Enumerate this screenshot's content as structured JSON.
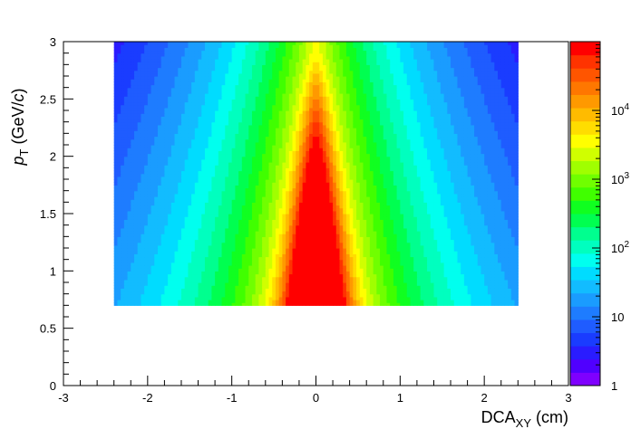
{
  "chart_data": {
    "type": "heatmap",
    "title": "",
    "xlabel": {
      "main": "DCA",
      "sub": "XY",
      "unit": " (cm)"
    },
    "ylabel": {
      "main": "p",
      "sub": "T",
      "unit_prefix": " (GeV/",
      "unit_var": "c",
      "unit_suffix": ")"
    },
    "xlim": [
      -3,
      3
    ],
    "ylim": [
      0,
      3
    ],
    "x_tick_labels": [
      "-3",
      "-2",
      "-1",
      "0",
      "1",
      "2",
      "3"
    ],
    "y_tick_labels": [
      "0",
      "0.5",
      "1",
      "1.5",
      "2",
      "2.5",
      "3"
    ],
    "z_scale": "log",
    "z_range": [
      1,
      100000
    ],
    "z_tick_labels": [
      {
        "base": "1",
        "exp": ""
      },
      {
        "base": "10",
        "exp": ""
      },
      {
        "base": "10",
        "exp": "2"
      },
      {
        "base": "10",
        "exp": "3"
      },
      {
        "base": "10",
        "exp": "4"
      }
    ],
    "data_x_range": [
      -2.4,
      2.4
    ],
    "data_y_range": [
      0.7,
      3.0
    ],
    "distribution": {
      "peak_x": 0,
      "peak_value": 100000,
      "description_values": {
        "core_width_at_pt_1": 0.22,
        "core_width_at_pt_3": 0.08
      }
    },
    "palette": [
      "#7f00ff",
      "#5000ff",
      "#2a1cff",
      "#1a3cff",
      "#1f5cff",
      "#1e7cff",
      "#1a9cff",
      "#12bcff",
      "#00dcff",
      "#00ffef",
      "#00ffbf",
      "#00ff8f",
      "#00ff50",
      "#10ff20",
      "#40ff00",
      "#70ff00",
      "#a0ff00",
      "#d0ff00",
      "#ffff00",
      "#ffdd00",
      "#ffbb00",
      "#ff9900",
      "#ff7700",
      "#ff5500",
      "#ff3300",
      "#ff0000"
    ]
  }
}
